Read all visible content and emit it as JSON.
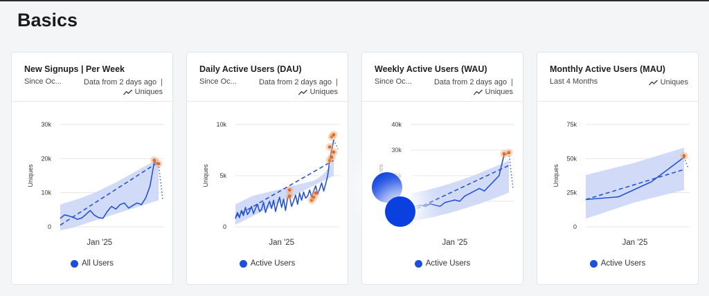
{
  "page": {
    "title": "Basics"
  },
  "cards": [
    {
      "title": "New Signups | Per Week",
      "subtitle": "Since Oc...",
      "meta": "Data from 2 days ago",
      "metric": "Uniques",
      "legend": "All Users"
    },
    {
      "title": "Daily Active Users (DAU)",
      "subtitle": "Since Oc...",
      "meta": "Data from 2 days ago",
      "metric": "Uniques",
      "legend": "Active Users"
    },
    {
      "title": "Weekly Active Users (WAU)",
      "subtitle": "Since Oc...",
      "meta": "Data from 2 days ago",
      "metric": "Uniques",
      "legend": "Active Users"
    },
    {
      "title": "Monthly Active Users (MAU)",
      "subtitle": "Last 4 Months",
      "meta": "",
      "metric": "Uniques",
      "legend": "Active Users"
    }
  ],
  "colors": {
    "line": "#2352d6",
    "band": "#c9d5f7",
    "anomaly": "#f0a66a",
    "overlay": "#0a3fe0"
  },
  "chart_data": [
    {
      "type": "line",
      "ylabel": "Uniques",
      "ylim": [
        0,
        30000
      ],
      "yticks": [
        0,
        10000,
        20000,
        30000
      ],
      "ytick_labels": [
        "0",
        "10k",
        "20k",
        "30k"
      ],
      "xtick_label": "Jan '25",
      "xtick_pos": 0.4,
      "values": [
        2500,
        3500,
        3200,
        2800,
        2200,
        2600,
        3600,
        4800,
        3400,
        2700,
        2500,
        4500,
        6000,
        5200,
        6500,
        7000,
        5500,
        6300,
        7000,
        6500,
        8500,
        12000,
        19000,
        18500
      ],
      "band_lo": [
        -1000,
        -800,
        -500,
        -200,
        200,
        600,
        1000,
        1400,
        1800,
        2200,
        2600,
        3000,
        3400,
        3800,
        4200,
        4600,
        5000,
        5400,
        5800,
        6200,
        6600,
        7000,
        7400,
        7800
      ],
      "band_hi": [
        6500,
        7000,
        7300,
        7700,
        8100,
        8500,
        9000,
        9500,
        10000,
        10600,
        11200,
        11800,
        12400,
        13000,
        13700,
        14400,
        15100,
        15800,
        16500,
        17200,
        17900,
        18600,
        19300,
        20000
      ],
      "trend": [
        500,
        19000
      ],
      "anomalies": [
        [
          22,
          19500
        ],
        [
          23,
          18500
        ]
      ],
      "forecast_end": 8000
    },
    {
      "type": "line",
      "ylabel": "Uniques",
      "ylim": [
        0,
        10000
      ],
      "yticks": [
        0,
        5000,
        10000
      ],
      "ytick_labels": [
        "0",
        "5k",
        "10k"
      ],
      "xtick_label": "Jan '25",
      "xtick_pos": 0.47,
      "values": [
        800,
        1400,
        900,
        1600,
        1100,
        1900,
        1200,
        1500,
        2000,
        1300,
        1800,
        2200,
        1500,
        1700,
        2400,
        1400,
        2000,
        2500,
        1800,
        2600,
        1500,
        2300,
        2900,
        1900,
        2700,
        1600,
        2800,
        3000,
        2000,
        2500,
        3100,
        2200,
        3300,
        2600,
        3400,
        2800,
        3000,
        3600,
        2900,
        3500,
        4000,
        3200,
        3700,
        4300,
        3500,
        4200,
        5000,
        6500,
        7500,
        8500
      ],
      "band_lo": [
        200,
        400,
        600,
        800,
        1000,
        1200,
        1400,
        1600,
        1800,
        2000,
        2200,
        2400,
        2600,
        2800,
        3000,
        3200,
        3400,
        3600,
        3800,
        4000,
        4200,
        4400,
        4600,
        4800,
        5000
      ],
      "band_hi": [
        2200,
        2400,
        2600,
        2800,
        3000,
        3100,
        3200,
        3300,
        3400,
        3500,
        3600,
        3700,
        3800,
        3900,
        4000,
        4100,
        4200,
        4300,
        4400,
        4500,
        4700,
        5000,
        5400,
        5900,
        6500
      ],
      "trend": [
        1000,
        6500
      ],
      "anomalies": [
        [
          27,
          3600
        ],
        [
          27,
          3000
        ],
        [
          38,
          2600
        ],
        [
          39,
          2900
        ],
        [
          40,
          3300
        ],
        [
          47,
          7800
        ],
        [
          47,
          6500
        ],
        [
          48,
          8800
        ],
        [
          48,
          6800
        ],
        [
          49,
          7300
        ],
        [
          49,
          9000
        ]
      ],
      "forecast_end": 7600
    },
    {
      "type": "line",
      "ylabel": "Uniques",
      "ylim": [
        0,
        40000
      ],
      "yticks": [
        10000,
        20000,
        30000,
        40000
      ],
      "ytick_labels": [
        "10k",
        "20k",
        "30k",
        "40k"
      ],
      "xtick_label": "Jan '25",
      "xtick_pos": 0.45,
      "values": [
        7000,
        8000,
        8500,
        8000,
        9000,
        8500,
        8000,
        9500,
        10000,
        10500,
        10000,
        12000,
        13000,
        14000,
        15000,
        14000,
        16000,
        18000,
        20000,
        28000,
        29000
      ],
      "band_lo": [
        2000,
        2400,
        2800,
        3200,
        3600,
        4000,
        4500,
        5000,
        5500,
        6000,
        6600,
        7200,
        7800,
        8400,
        9000,
        9700,
        10400,
        11100,
        11800,
        12600,
        13400
      ],
      "band_hi": [
        13000,
        13400,
        13800,
        14200,
        14700,
        15200,
        15700,
        16300,
        16900,
        17500,
        18100,
        18800,
        19500,
        20200,
        21000,
        21800,
        22600,
        23400,
        24200,
        25000,
        26000
      ],
      "trend": [
        6000,
        24000
      ],
      "anomalies": [
        [
          19,
          28500
        ],
        [
          20,
          29000
        ]
      ],
      "forecast_end": 15000
    },
    {
      "type": "line",
      "ylabel": "Uniques",
      "ylim": [
        0,
        75000
      ],
      "yticks": [
        0,
        25000,
        50000,
        75000
      ],
      "ytick_labels": [
        "0",
        "25k",
        "50k",
        "75k"
      ],
      "xtick_label": "Jan '25",
      "xtick_pos": 0.5,
      "values": [
        20000,
        22000,
        33000,
        51000
      ],
      "band_lo": [
        6000,
        18000,
        27000
      ],
      "band_hi": [
        38000,
        47000,
        58000
      ],
      "trend": [
        20000,
        42000
      ],
      "anomalies": [
        [
          3,
          52000
        ]
      ],
      "forecast_end": 43000
    }
  ]
}
